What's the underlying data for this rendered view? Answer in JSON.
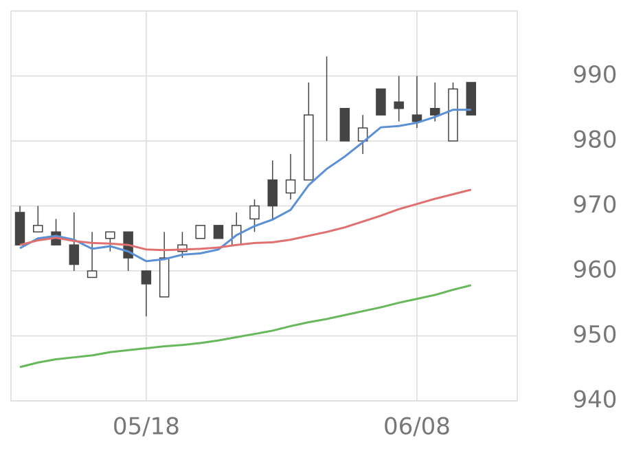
{
  "chart_data": {
    "type": "candlestick",
    "categories": [
      null,
      null,
      null,
      null,
      null,
      null,
      null,
      "05/18",
      null,
      null,
      null,
      null,
      null,
      null,
      null,
      null,
      null,
      null,
      null,
      null,
      null,
      null,
      "06/08",
      null,
      null,
      null
    ],
    "open": [
      969,
      966,
      966,
      964,
      959,
      965,
      966,
      960,
      956,
      963,
      965,
      967,
      964,
      968,
      974,
      972,
      974,
      980,
      985,
      980,
      988,
      986,
      984,
      985,
      980,
      989
    ],
    "high": [
      970,
      970,
      968,
      969,
      966,
      966,
      966,
      960,
      966,
      966,
      967,
      967,
      969,
      971,
      977,
      978,
      989,
      993,
      985,
      984,
      988,
      990,
      990,
      989,
      989,
      989
    ],
    "low": [
      964,
      966,
      964,
      960,
      959,
      963,
      960,
      953,
      956,
      962,
      965,
      965,
      964,
      966,
      968,
      971,
      974,
      980,
      980,
      978,
      984,
      983,
      982,
      983,
      980,
      984
    ],
    "close": [
      964,
      967,
      964,
      961,
      960,
      966,
      962,
      958,
      962,
      964,
      967,
      965,
      967,
      970,
      970,
      974,
      984,
      980,
      980,
      982,
      984,
      985,
      983,
      984,
      988,
      984
    ],
    "up_color": "#ffffff",
    "down_color": "#444444",
    "candle_stroke": "#444444",
    "lines": [
      {
        "color": "#5b8fd6",
        "values": [
          963.5,
          965.0,
          965.4,
          964.8,
          963.4,
          963.8,
          963.0,
          961.5,
          961.8,
          962.5,
          962.7,
          963.3,
          965.5,
          966.9,
          967.9,
          969.4,
          973.2,
          975.7,
          977.6,
          979.8,
          982.1,
          982.3,
          982.8,
          983.7,
          984.8,
          984.8
        ]
      },
      {
        "color": "#e07070",
        "values": [
          964.0,
          964.7,
          965.1,
          964.6,
          964.3,
          964.2,
          964.0,
          963.3,
          963.2,
          963.3,
          963.4,
          963.6,
          964.0,
          964.3,
          964.4,
          964.8,
          965.4,
          966.0,
          966.7,
          967.6,
          968.5,
          969.5,
          970.3,
          971.1,
          971.8,
          972.5
        ]
      },
      {
        "color": "#66b85a",
        "values": [
          945.2,
          945.9,
          946.4,
          946.7,
          947.0,
          947.5,
          947.8,
          948.1,
          948.4,
          948.6,
          948.9,
          949.3,
          949.8,
          950.3,
          950.8,
          951.5,
          952.1,
          952.6,
          953.2,
          953.8,
          954.4,
          955.1,
          955.7,
          956.3,
          957.1,
          957.8
        ]
      }
    ],
    "ylim": [
      940,
      1000
    ],
    "yticks": [
      940,
      950,
      960,
      970,
      980,
      990
    ],
    "grid": true
  }
}
